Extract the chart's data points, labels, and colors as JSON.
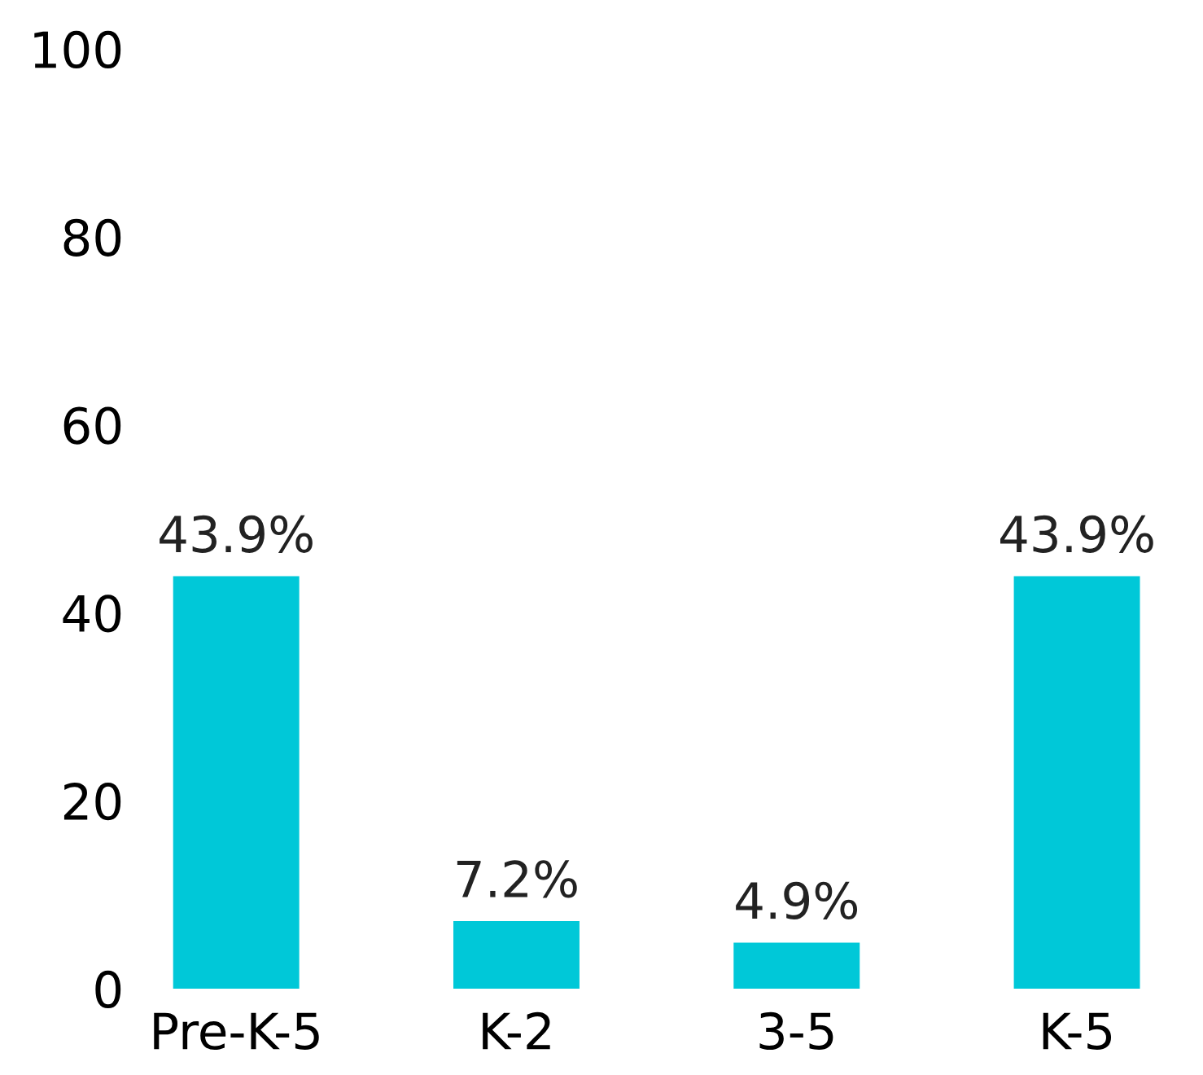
{
  "chart_data": {
    "type": "bar",
    "categories": [
      "Pre-K-5",
      "K-2",
      "3-5",
      "K-5"
    ],
    "values": [
      43.9,
      7.2,
      4.9,
      43.9
    ],
    "value_labels": [
      "43.9%",
      "7.2%",
      "4.9%",
      "43.9%"
    ],
    "color": "#00c8d8",
    "ylim": [
      0,
      100
    ],
    "yticks": [
      0,
      20,
      40,
      60,
      80,
      100
    ],
    "grid": false,
    "legend": false
  }
}
